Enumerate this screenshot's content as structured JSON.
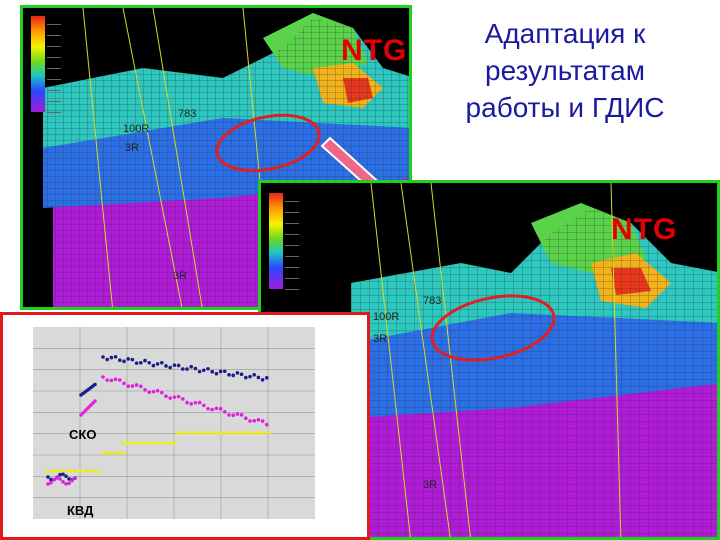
{
  "title": {
    "lines": [
      "Адаптация к",
      "результатам",
      "работы и ГДИС"
    ]
  },
  "back_panel": {
    "ntg_label": "NTG",
    "well_labels": [
      "783",
      "100R",
      "3R",
      "3R"
    ]
  },
  "front_panel": {
    "ntg_label": "NTG",
    "well_labels": [
      "783",
      "100R",
      "3R",
      "3R"
    ]
  },
  "chart": {
    "annotations": [
      "СКО",
      "КВД"
    ],
    "colors": {
      "series_dark": "#1c1c8c",
      "series_magenta": "#e020e0",
      "series_yellow": "#f0f000",
      "plot_bg": "#d9d9d9"
    }
  },
  "colors": {
    "panel_border": "#1fd01f",
    "chart_border": "#e01a1a",
    "arrow": "#ee6688",
    "ellipse": "#e02020",
    "title_text": "#1a1aa0",
    "ntg_text": "#e40000"
  }
}
